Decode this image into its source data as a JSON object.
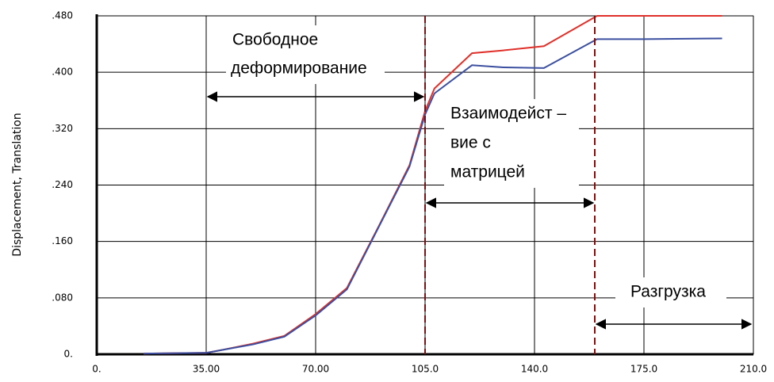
{
  "chart_data": {
    "type": "line",
    "y_label": "Displacement, Translation",
    "x": [
      15,
      35,
      40,
      50,
      60,
      70,
      80,
      90,
      100,
      105,
      108,
      120,
      130,
      143,
      160,
      175,
      200
    ],
    "series": [
      {
        "name": "red",
        "color": "#e0302a",
        "values": [
          0.001,
          0.002,
          0.006,
          0.015,
          0.026,
          0.057,
          0.094,
          0.18,
          0.268,
          0.345,
          0.377,
          0.427,
          0.431,
          0.437,
          0.48,
          0.48,
          0.48
        ]
      },
      {
        "name": "blue",
        "color": "#3b4fa0",
        "values": [
          0.001,
          0.002,
          0.006,
          0.014,
          0.025,
          0.055,
          0.092,
          0.179,
          0.266,
          0.34,
          0.37,
          0.41,
          0.407,
          0.406,
          0.447,
          0.447,
          0.448
        ]
      }
    ],
    "xlim": [
      0,
      210
    ],
    "xticks": [
      {
        "value": 0,
        "label": "0."
      },
      {
        "value": 35,
        "label": "35.00"
      },
      {
        "value": 70,
        "label": "70.00"
      },
      {
        "value": 105,
        "label": "105.0"
      },
      {
        "value": 140,
        "label": "140.0"
      },
      {
        "value": 175,
        "label": "175.0"
      },
      {
        "value": 210,
        "label": "210.0"
      }
    ],
    "ylim": [
      0,
      0.48
    ],
    "yticks": [
      {
        "value": 0,
        "label": "0."
      },
      {
        "value": 0.08,
        "label": ".080"
      },
      {
        "value": 0.16,
        "label": ".160"
      },
      {
        "value": 0.24,
        "label": ".240"
      },
      {
        "value": 0.32,
        "label": ".320"
      },
      {
        "value": 0.4,
        "label": ".400"
      },
      {
        "value": 0.48,
        "label": ".480"
      }
    ],
    "grid": true,
    "annotations": [
      [
        "Свободное",
        "деформирование"
      ],
      [
        "Взаимодейст –",
        "вие с",
        "матрицей"
      ],
      [
        "Разгрузка"
      ]
    ]
  }
}
